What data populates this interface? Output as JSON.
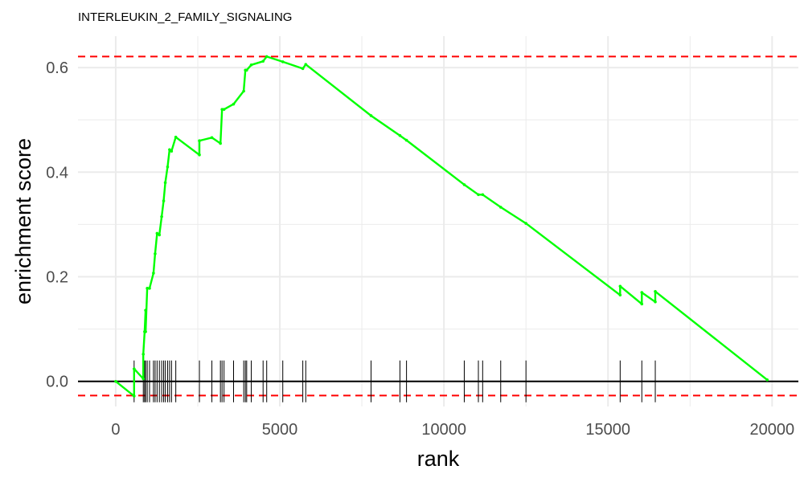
{
  "chart_data": {
    "type": "line",
    "title": "INTERLEUKIN_2_FAMILY_SIGNALING",
    "xlabel": "rank",
    "ylabel": "enrichment score",
    "xlim": [
      -1150,
      20800
    ],
    "ylim": [
      -0.048,
      0.66
    ],
    "x_ticks": [
      0,
      5000,
      10000,
      15000,
      20000
    ],
    "x_tick_labels": [
      "0",
      "5000",
      "10000",
      "15000",
      "20000"
    ],
    "y_ticks": [
      0.0,
      0.2,
      0.4,
      0.6
    ],
    "y_tick_labels": [
      "0.0",
      "0.2",
      "0.4",
      "0.6"
    ],
    "grid": true,
    "colors": {
      "es_line": "#00ff00",
      "threshold": "#ff0000",
      "zero_line": "#000000",
      "hits": "#000000",
      "grid": "#ebebeb"
    },
    "thresholds": [
      0.621,
      -0.027
    ],
    "hit_ranks": [
      560,
      840,
      880,
      910,
      960,
      1030,
      1150,
      1200,
      1260,
      1330,
      1400,
      1460,
      1510,
      1580,
      1640,
      1700,
      1830,
      2550,
      2930,
      3190,
      3240,
      3300,
      3590,
      3900,
      3950,
      3990,
      4130,
      4490,
      4600,
      5090,
      5700,
      5790,
      7780,
      8660,
      8860,
      10620,
      11050,
      11180,
      11730,
      12500,
      15370,
      16030,
      16440
    ],
    "series": [
      {
        "x": [
          0,
          560,
          560,
          840,
          840,
          880,
          910,
          910,
          960,
          1030,
          1150,
          1200,
          1260,
          1330,
          1400,
          1460,
          1510,
          1580,
          1640,
          1700,
          1830,
          2550,
          2550,
          2930,
          3190,
          3240,
          3300,
          3590,
          3900,
          3950,
          3990,
          4130,
          4490,
          4600,
          5090,
          5700,
          5790,
          7780,
          8660,
          8860,
          10620,
          11050,
          11180,
          11730,
          12500,
          15370,
          15370,
          16030,
          16030,
          16440,
          16440,
          19850
        ],
        "y": [
          0.0,
          -0.028,
          0.024,
          0.005,
          0.052,
          0.095,
          0.136,
          0.095,
          0.178,
          0.178,
          0.207,
          0.244,
          0.283,
          0.28,
          0.315,
          0.345,
          0.38,
          0.41,
          0.443,
          0.44,
          0.467,
          0.433,
          0.46,
          0.466,
          0.455,
          0.52,
          0.52,
          0.53,
          0.555,
          0.595,
          0.595,
          0.605,
          0.612,
          0.621,
          0.611,
          0.598,
          0.606,
          0.508,
          0.47,
          0.461,
          0.376,
          0.357,
          0.357,
          0.333,
          0.302,
          0.165,
          0.182,
          0.148,
          0.17,
          0.152,
          0.172,
          0.003
        ]
      }
    ]
  }
}
